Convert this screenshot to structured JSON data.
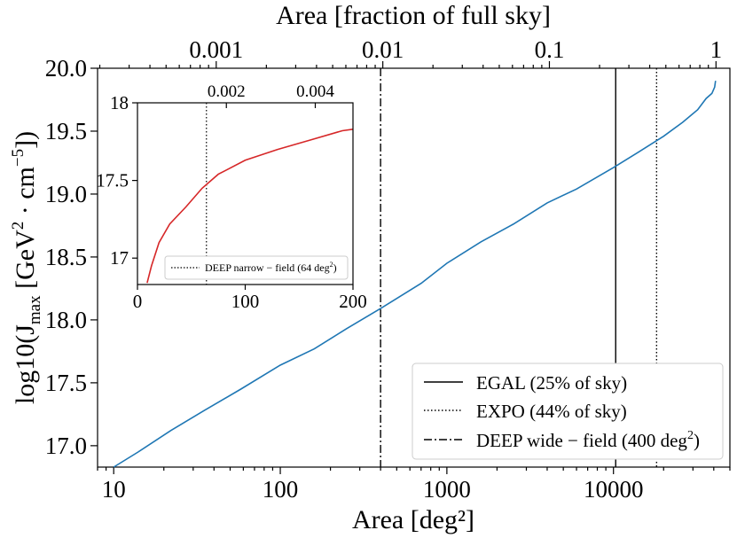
{
  "chart_data": [
    {
      "id": "main",
      "type": "line",
      "xscale": "log",
      "xlim": [
        8,
        50000
      ],
      "ylim": [
        16.83,
        20.0
      ],
      "xlabel": "Area [deg²]",
      "ylabel_main": "log10(J",
      "ylabel_sub": "max",
      "ylabel_rest": " [GeV",
      "ylabel_sup1": "2",
      "ylabel_mid": " · cm",
      "ylabel_sup2": "−5",
      "ylabel_end": "])",
      "top_axis_label": "Area [fraction of full sky]",
      "x_ticks": [
        {
          "v": 10,
          "label": "10"
        },
        {
          "v": 100,
          "label": "100"
        },
        {
          "v": 1000,
          "label": "1000"
        },
        {
          "v": 10000,
          "label": "10000"
        }
      ],
      "y_ticks": [
        {
          "v": 17.0,
          "label": "17.0"
        },
        {
          "v": 17.5,
          "label": "17.5"
        },
        {
          "v": 18.0,
          "label": "18.0"
        },
        {
          "v": 18.5,
          "label": "18.5"
        },
        {
          "v": 19.0,
          "label": "19.0"
        },
        {
          "v": 19.5,
          "label": "19.5"
        },
        {
          "v": 20.0,
          "label": "20.0"
        }
      ],
      "top_ticks": [
        {
          "v": 0.001,
          "label": "0.001"
        },
        {
          "v": 0.01,
          "label": "0.01"
        },
        {
          "v": 0.1,
          "label": "0.1"
        },
        {
          "v": 1,
          "label": "1"
        }
      ],
      "full_sky_deg2": 41253,
      "series": [
        {
          "color": "#1f77b4",
          "x": [
            10,
            14,
            22,
            35,
            58,
            100,
            160,
            250,
            400,
            700,
            1000,
            1600,
            2500,
            4000,
            6000,
            10000,
            14000,
            20000,
            26000,
            32000,
            36000,
            39000,
            40500,
            41000
          ],
          "y": [
            16.83,
            16.95,
            17.12,
            17.28,
            17.45,
            17.64,
            17.77,
            17.93,
            18.09,
            18.29,
            18.45,
            18.62,
            18.76,
            18.93,
            19.04,
            19.21,
            19.33,
            19.46,
            19.57,
            19.67,
            19.76,
            19.8,
            19.85,
            19.9
          ]
        }
      ],
      "vlines": [
        {
          "x": 10313,
          "style": "solid",
          "label_main": "EGAL (25% of sky)"
        },
        {
          "x": 18151,
          "style": "dotted",
          "label_main": "EXPO (44% of sky)"
        },
        {
          "x": 400,
          "style": "dashdot",
          "label_main": "DEEP wide − field (400 deg",
          "label_sup": "2",
          "label_end": ")"
        }
      ],
      "legend_position": "lower right"
    },
    {
      "id": "inset",
      "type": "line",
      "xlim": [
        0,
        200
      ],
      "ylim": [
        16.83,
        18.0
      ],
      "x_ticks": [
        {
          "v": 0,
          "label": "0"
        },
        {
          "v": 100,
          "label": "100"
        },
        {
          "v": 200,
          "label": "200"
        }
      ],
      "y_ticks": [
        {
          "v": 17.0,
          "label": "17"
        },
        {
          "v": 17.5,
          "label": "17.5"
        },
        {
          "v": 18.0,
          "label": "18"
        }
      ],
      "top_ticks": [
        {
          "v": 0.002,
          "label": "0.002"
        },
        {
          "v": 0.004,
          "label": "0.004"
        }
      ],
      "series": [
        {
          "color": "#d62728",
          "x": [
            9,
            13,
            20,
            30,
            45,
            60,
            75,
            100,
            130,
            160,
            190,
            200
          ],
          "y": [
            16.84,
            16.95,
            17.1,
            17.22,
            17.33,
            17.45,
            17.54,
            17.63,
            17.7,
            17.76,
            17.82,
            17.83
          ]
        }
      ],
      "vlines": [
        {
          "x": 64,
          "style": "dotted",
          "label_main": "DEEP narrow − field (64 deg",
          "label_sup": "2",
          "label_end": ")"
        }
      ],
      "legend_position": "lower right"
    }
  ]
}
